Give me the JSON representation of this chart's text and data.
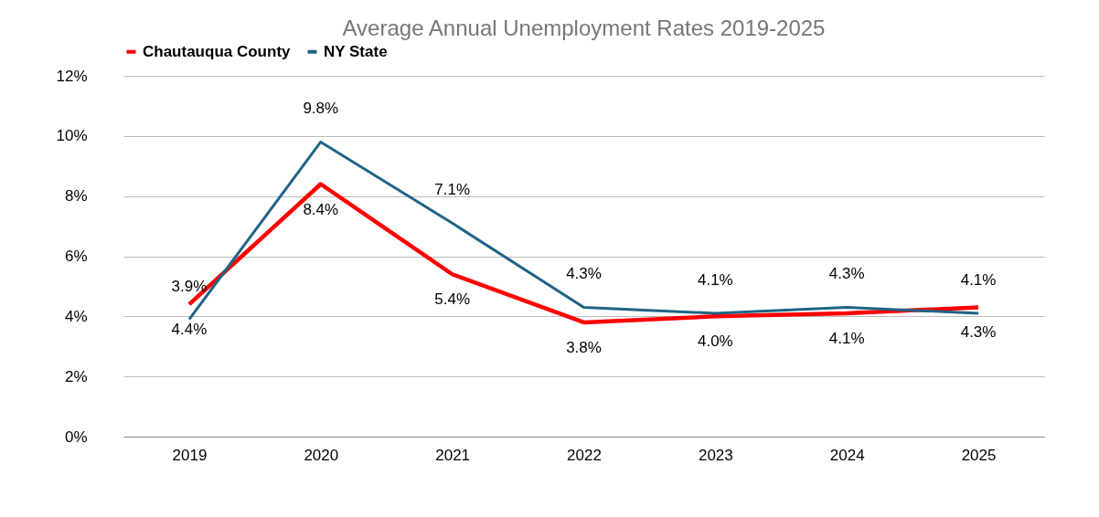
{
  "chart_data": {
    "type": "line",
    "title": "Average Annual Unemployment Rates 2019-2025",
    "categories": [
      "2019",
      "2020",
      "2021",
      "2022",
      "2023",
      "2024",
      "2025"
    ],
    "series": [
      {
        "name": "Chautauqua County",
        "color": "#ff0000",
        "values": [
          4.4,
          8.4,
          5.4,
          3.8,
          4.0,
          4.1,
          4.3
        ],
        "value_labels": [
          "4.4%",
          "8.4%",
          "5.4%",
          "3.8%",
          "4.0%",
          "4.1%",
          "4.3%"
        ]
      },
      {
        "name": "NY State",
        "color": "#1f6485",
        "values": [
          3.9,
          9.8,
          7.1,
          4.3,
          4.1,
          4.3,
          4.1
        ],
        "value_labels": [
          "3.9%",
          "9.8%",
          "7.1%",
          "4.3%",
          "4.1%",
          "4.3%",
          "4.1%"
        ]
      }
    ],
    "ylim": [
      0,
      12
    ],
    "yticks": [
      {
        "value": 0,
        "label": "0%"
      },
      {
        "value": 2,
        "label": "2%"
      },
      {
        "value": 4,
        "label": "4%"
      },
      {
        "value": 6,
        "label": "6%"
      },
      {
        "value": 8,
        "label": "8%"
      },
      {
        "value": 10,
        "label": "10%"
      },
      {
        "value": 12,
        "label": "12%"
      }
    ],
    "grid": "y",
    "legend": "top",
    "marker": "none",
    "line_style": "solid"
  }
}
